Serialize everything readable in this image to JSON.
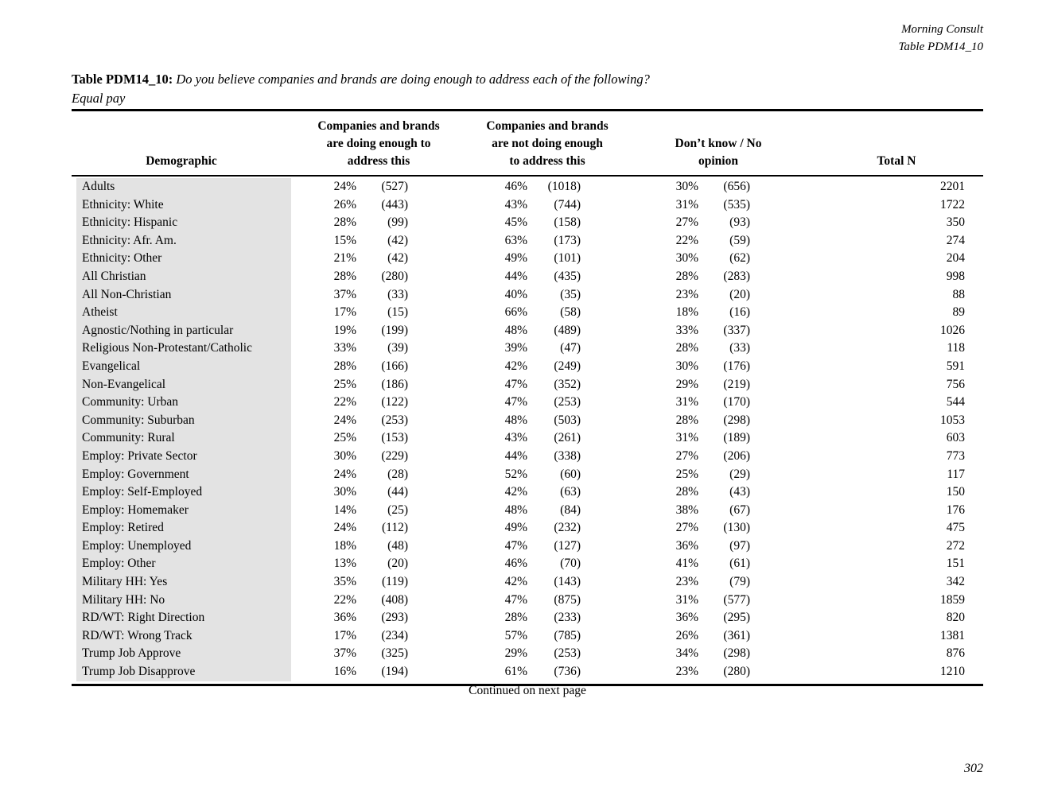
{
  "doc_header": {
    "brand": "Morning Consult",
    "table_ref": "Table PDM14_10"
  },
  "title": {
    "label": "Table PDM14_10:",
    "question": "Do you believe companies and brands are doing enough to address each of the following?",
    "subject": "Equal pay"
  },
  "table": {
    "columns": {
      "demographic": "Demographic",
      "group1": [
        "Companies and brands",
        "are doing enough to",
        "address this"
      ],
      "group2": [
        "Companies and brands",
        "are not doing enough",
        "to address this"
      ],
      "group3": [
        "Don’t know / No",
        "opinion"
      ],
      "total": "Total N"
    },
    "rows": [
      {
        "label": "Adults",
        "pct1": "24%",
        "n1": "(527)",
        "pct2": "46%",
        "n2": "(1018)",
        "pct3": "30%",
        "n3": "(656)",
        "total": "2201"
      },
      {
        "label": "Ethnicity: White",
        "pct1": "26%",
        "n1": "(443)",
        "pct2": "43%",
        "n2": "(744)",
        "pct3": "31%",
        "n3": "(535)",
        "total": "1722"
      },
      {
        "label": "Ethnicity: Hispanic",
        "pct1": "28%",
        "n1": "(99)",
        "pct2": "45%",
        "n2": "(158)",
        "pct3": "27%",
        "n3": "(93)",
        "total": "350"
      },
      {
        "label": "Ethnicity: Afr. Am.",
        "pct1": "15%",
        "n1": "(42)",
        "pct2": "63%",
        "n2": "(173)",
        "pct3": "22%",
        "n3": "(59)",
        "total": "274"
      },
      {
        "label": "Ethnicity: Other",
        "pct1": "21%",
        "n1": "(42)",
        "pct2": "49%",
        "n2": "(101)",
        "pct3": "30%",
        "n3": "(62)",
        "total": "204"
      },
      {
        "label": "All Christian",
        "pct1": "28%",
        "n1": "(280)",
        "pct2": "44%",
        "n2": "(435)",
        "pct3": "28%",
        "n3": "(283)",
        "total": "998"
      },
      {
        "label": "All Non-Christian",
        "pct1": "37%",
        "n1": "(33)",
        "pct2": "40%",
        "n2": "(35)",
        "pct3": "23%",
        "n3": "(20)",
        "total": "88"
      },
      {
        "label": "Atheist",
        "pct1": "17%",
        "n1": "(15)",
        "pct2": "66%",
        "n2": "(58)",
        "pct3": "18%",
        "n3": "(16)",
        "total": "89"
      },
      {
        "label": "Agnostic/Nothing in particular",
        "pct1": "19%",
        "n1": "(199)",
        "pct2": "48%",
        "n2": "(489)",
        "pct3": "33%",
        "n3": "(337)",
        "total": "1026"
      },
      {
        "label": "Religious Non-Protestant/Catholic",
        "pct1": "33%",
        "n1": "(39)",
        "pct2": "39%",
        "n2": "(47)",
        "pct3": "28%",
        "n3": "(33)",
        "total": "118"
      },
      {
        "label": "Evangelical",
        "pct1": "28%",
        "n1": "(166)",
        "pct2": "42%",
        "n2": "(249)",
        "pct3": "30%",
        "n3": "(176)",
        "total": "591"
      },
      {
        "label": "Non-Evangelical",
        "pct1": "25%",
        "n1": "(186)",
        "pct2": "47%",
        "n2": "(352)",
        "pct3": "29%",
        "n3": "(219)",
        "total": "756"
      },
      {
        "label": "Community: Urban",
        "pct1": "22%",
        "n1": "(122)",
        "pct2": "47%",
        "n2": "(253)",
        "pct3": "31%",
        "n3": "(170)",
        "total": "544"
      },
      {
        "label": "Community: Suburban",
        "pct1": "24%",
        "n1": "(253)",
        "pct2": "48%",
        "n2": "(503)",
        "pct3": "28%",
        "n3": "(298)",
        "total": "1053"
      },
      {
        "label": "Community: Rural",
        "pct1": "25%",
        "n1": "(153)",
        "pct2": "43%",
        "n2": "(261)",
        "pct3": "31%",
        "n3": "(189)",
        "total": "603"
      },
      {
        "label": "Employ: Private Sector",
        "pct1": "30%",
        "n1": "(229)",
        "pct2": "44%",
        "n2": "(338)",
        "pct3": "27%",
        "n3": "(206)",
        "total": "773"
      },
      {
        "label": "Employ: Government",
        "pct1": "24%",
        "n1": "(28)",
        "pct2": "52%",
        "n2": "(60)",
        "pct3": "25%",
        "n3": "(29)",
        "total": "117"
      },
      {
        "label": "Employ: Self-Employed",
        "pct1": "30%",
        "n1": "(44)",
        "pct2": "42%",
        "n2": "(63)",
        "pct3": "28%",
        "n3": "(43)",
        "total": "150"
      },
      {
        "label": "Employ: Homemaker",
        "pct1": "14%",
        "n1": "(25)",
        "pct2": "48%",
        "n2": "(84)",
        "pct3": "38%",
        "n3": "(67)",
        "total": "176"
      },
      {
        "label": "Employ: Retired",
        "pct1": "24%",
        "n1": "(112)",
        "pct2": "49%",
        "n2": "(232)",
        "pct3": "27%",
        "n3": "(130)",
        "total": "475"
      },
      {
        "label": "Employ: Unemployed",
        "pct1": "18%",
        "n1": "(48)",
        "pct2": "47%",
        "n2": "(127)",
        "pct3": "36%",
        "n3": "(97)",
        "total": "272"
      },
      {
        "label": "Employ: Other",
        "pct1": "13%",
        "n1": "(20)",
        "pct2": "46%",
        "n2": "(70)",
        "pct3": "41%",
        "n3": "(61)",
        "total": "151"
      },
      {
        "label": "Military HH: Yes",
        "pct1": "35%",
        "n1": "(119)",
        "pct2": "42%",
        "n2": "(143)",
        "pct3": "23%",
        "n3": "(79)",
        "total": "342"
      },
      {
        "label": "Military HH: No",
        "pct1": "22%",
        "n1": "(408)",
        "pct2": "47%",
        "n2": "(875)",
        "pct3": "31%",
        "n3": "(577)",
        "total": "1859"
      },
      {
        "label": "RD/WT: Right Direction",
        "pct1": "36%",
        "n1": "(293)",
        "pct2": "28%",
        "n2": "(233)",
        "pct3": "36%",
        "n3": "(295)",
        "total": "820"
      },
      {
        "label": "RD/WT: Wrong Track",
        "pct1": "17%",
        "n1": "(234)",
        "pct2": "57%",
        "n2": "(785)",
        "pct3": "26%",
        "n3": "(361)",
        "total": "1381"
      },
      {
        "label": "Trump Job Approve",
        "pct1": "37%",
        "n1": "(325)",
        "pct2": "29%",
        "n2": "(253)",
        "pct3": "34%",
        "n3": "(298)",
        "total": "876"
      },
      {
        "label": "Trump Job Disapprove",
        "pct1": "16%",
        "n1": "(194)",
        "pct2": "61%",
        "n2": "(736)",
        "pct3": "23%",
        "n3": "(280)",
        "total": "1210"
      }
    ]
  },
  "footer": {
    "continued": "Continued on next page",
    "page_number": "302"
  },
  "colors": {
    "text": "#000000",
    "row_shade": "#e3e3e3"
  }
}
